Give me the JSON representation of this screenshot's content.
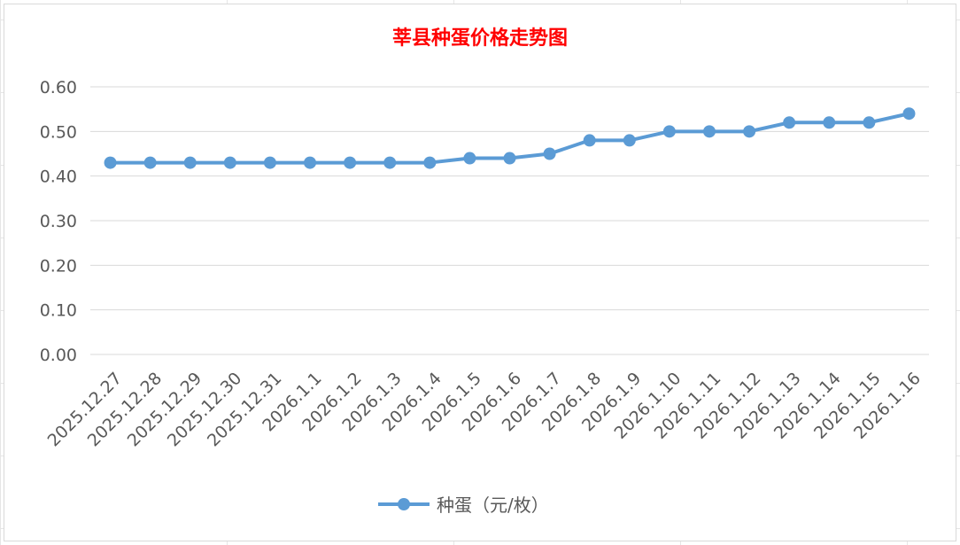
{
  "chart_data": {
    "type": "line",
    "title": "莘县种蛋价格走势图",
    "title_color": "#ff0000",
    "categories": [
      "2025.12.27",
      "2025.12.28",
      "2025.12.29",
      "2025.12.30",
      "2025.12.31",
      "2026.1.1",
      "2026.1.2",
      "2026.1.3",
      "2026.1.4",
      "2026.1.5",
      "2026.1.6",
      "2026.1.7",
      "2026.1.8",
      "2026.1.9",
      "2026.1.10",
      "2026.1.11",
      "2026.1.12",
      "2026.1.13",
      "2026.1.14",
      "2026.1.15",
      "2026.1.16"
    ],
    "series": [
      {
        "name": "种蛋（元/枚）",
        "color": "#5b9bd5",
        "values": [
          0.43,
          0.43,
          0.43,
          0.43,
          0.43,
          0.43,
          0.43,
          0.43,
          0.43,
          0.44,
          0.44,
          0.45,
          0.48,
          0.48,
          0.5,
          0.5,
          0.5,
          0.52,
          0.52,
          0.52,
          0.54
        ]
      }
    ],
    "y_ticks": [
      "0.00",
      "0.10",
      "0.20",
      "0.30",
      "0.40",
      "0.50",
      "0.60"
    ],
    "ylim": [
      0,
      0.6
    ],
    "grid": true,
    "legend_position": "bottom",
    "xlabel": "",
    "ylabel": ""
  }
}
